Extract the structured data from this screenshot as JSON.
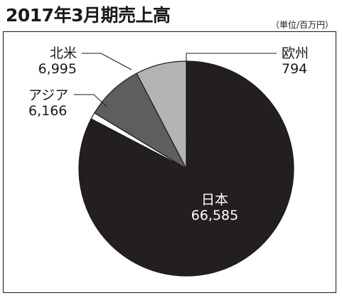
{
  "title": "2017年3月期売上高",
  "unit_note": "（単位/百万円）",
  "chart_data": {
    "type": "pie",
    "title": "2017年3月期売上高",
    "unit": "百万円",
    "slices": [
      {
        "label": "日本",
        "value": 66585,
        "value_text": "66,585",
        "color": "#231f20"
      },
      {
        "label": "欧州",
        "value": 794,
        "value_text": "794",
        "color": "#ffffff"
      },
      {
        "label": "北米",
        "value": 6995,
        "value_text": "6,995",
        "color": "#5e5e5e"
      },
      {
        "label": "アジア",
        "value": 6166,
        "value_text": "6,166",
        "color": "#b4b4b4"
      }
    ]
  }
}
